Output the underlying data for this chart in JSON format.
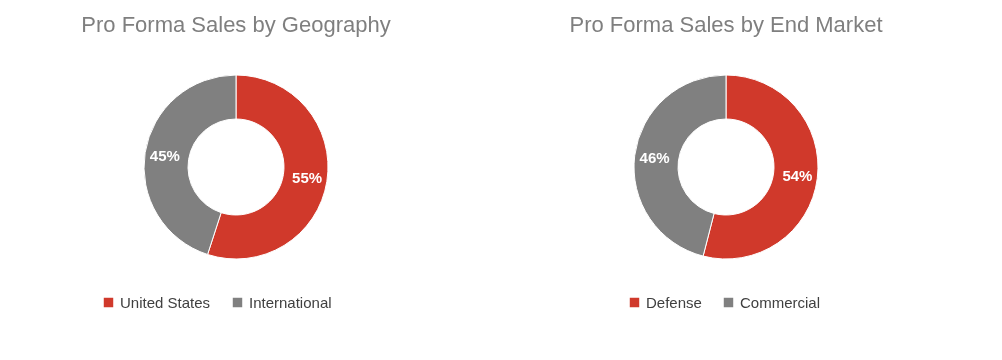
{
  "chart_data": [
    {
      "type": "donut",
      "title": "Pro Forma Sales by Geography",
      "categories": [
        "United States",
        "International"
      ],
      "values": [
        55,
        45
      ],
      "colors": [
        "#d0392b",
        "#808080"
      ],
      "value_labels": [
        "55%",
        "45%"
      ],
      "legend": "bottom"
    },
    {
      "type": "donut",
      "title": "Pro Forma Sales by End Market",
      "categories": [
        "Defense",
        "Commercial"
      ],
      "values": [
        54,
        46
      ],
      "colors": [
        "#d0392b",
        "#808080"
      ],
      "value_labels": [
        "54%",
        "46%"
      ],
      "legend": "bottom"
    }
  ]
}
